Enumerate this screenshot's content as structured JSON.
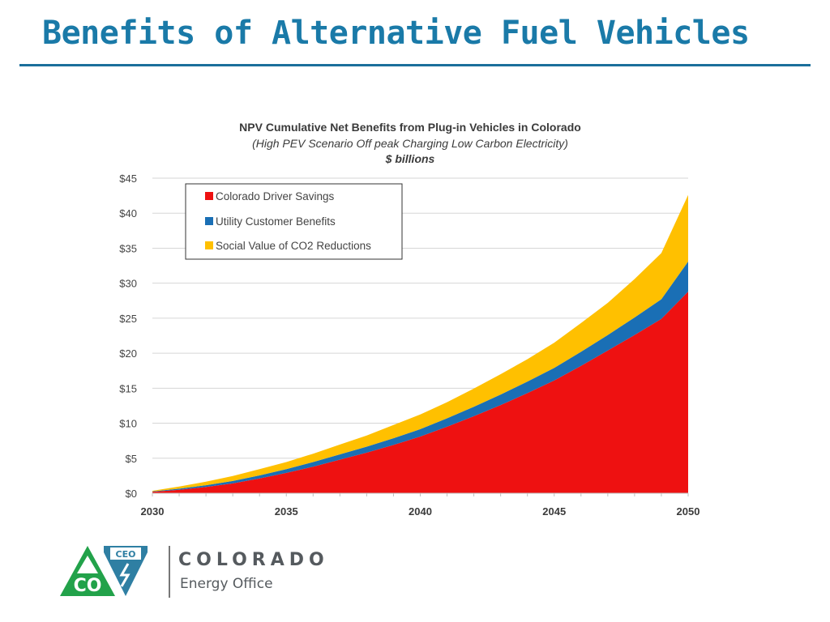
{
  "slide": {
    "title": "Benefits of Alternative Fuel Vehicles"
  },
  "chart_data": {
    "type": "area",
    "stacked": true,
    "title": "NPV Cumulative Net Benefits from Plug-in Vehicles in Colorado",
    "subtitle": "(High PEV Scenario  Off peak Charging   Low Carbon Electricity)",
    "units": "$ billions",
    "xlabel": "",
    "ylabel": "",
    "x": [
      2030,
      2031,
      2032,
      2033,
      2034,
      2035,
      2036,
      2037,
      2038,
      2039,
      2040,
      2041,
      2042,
      2043,
      2044,
      2045,
      2046,
      2047,
      2048,
      2049,
      2050
    ],
    "xticks": [
      2030,
      2035,
      2040,
      2045,
      2050
    ],
    "ylim": [
      0,
      45
    ],
    "yticks": [
      "$0",
      "$5",
      "$10",
      "$15",
      "$20",
      "$25",
      "$30",
      "$35",
      "$40",
      "$45"
    ],
    "ytick_values": [
      0,
      5,
      10,
      15,
      20,
      25,
      30,
      35,
      40,
      45
    ],
    "grid": true,
    "legend_position": "top-left",
    "series": [
      {
        "name": "Colorado Driver Savings",
        "color": "#ee1111",
        "values": [
          0.2,
          0.5,
          0.9,
          1.4,
          2.1,
          2.9,
          3.8,
          4.8,
          5.8,
          6.9,
          8.1,
          9.5,
          11.0,
          12.6,
          14.3,
          16.1,
          18.2,
          20.4,
          22.6,
          24.9,
          28.8
        ]
      },
      {
        "name": "Utility Customer Benefits",
        "color": "#1a6fb5",
        "values": [
          0.05,
          0.15,
          0.25,
          0.35,
          0.45,
          0.55,
          0.65,
          0.75,
          0.85,
          0.95,
          1.05,
          1.2,
          1.35,
          1.5,
          1.65,
          1.8,
          2.0,
          2.2,
          2.5,
          2.8,
          4.3
        ]
      },
      {
        "name": "Social Value of CO2 Reductions",
        "color": "#ffc000",
        "values": [
          0.1,
          0.3,
          0.5,
          0.7,
          0.9,
          1.0,
          1.2,
          1.4,
          1.6,
          1.9,
          2.1,
          2.3,
          2.6,
          2.9,
          3.2,
          3.6,
          4.1,
          4.6,
          5.5,
          6.6,
          9.5
        ]
      }
    ]
  },
  "logo": {
    "badge_co": "CO",
    "badge_ceo": "CEO",
    "wordmark": "COLORADO",
    "subtitle": "Energy Office"
  }
}
